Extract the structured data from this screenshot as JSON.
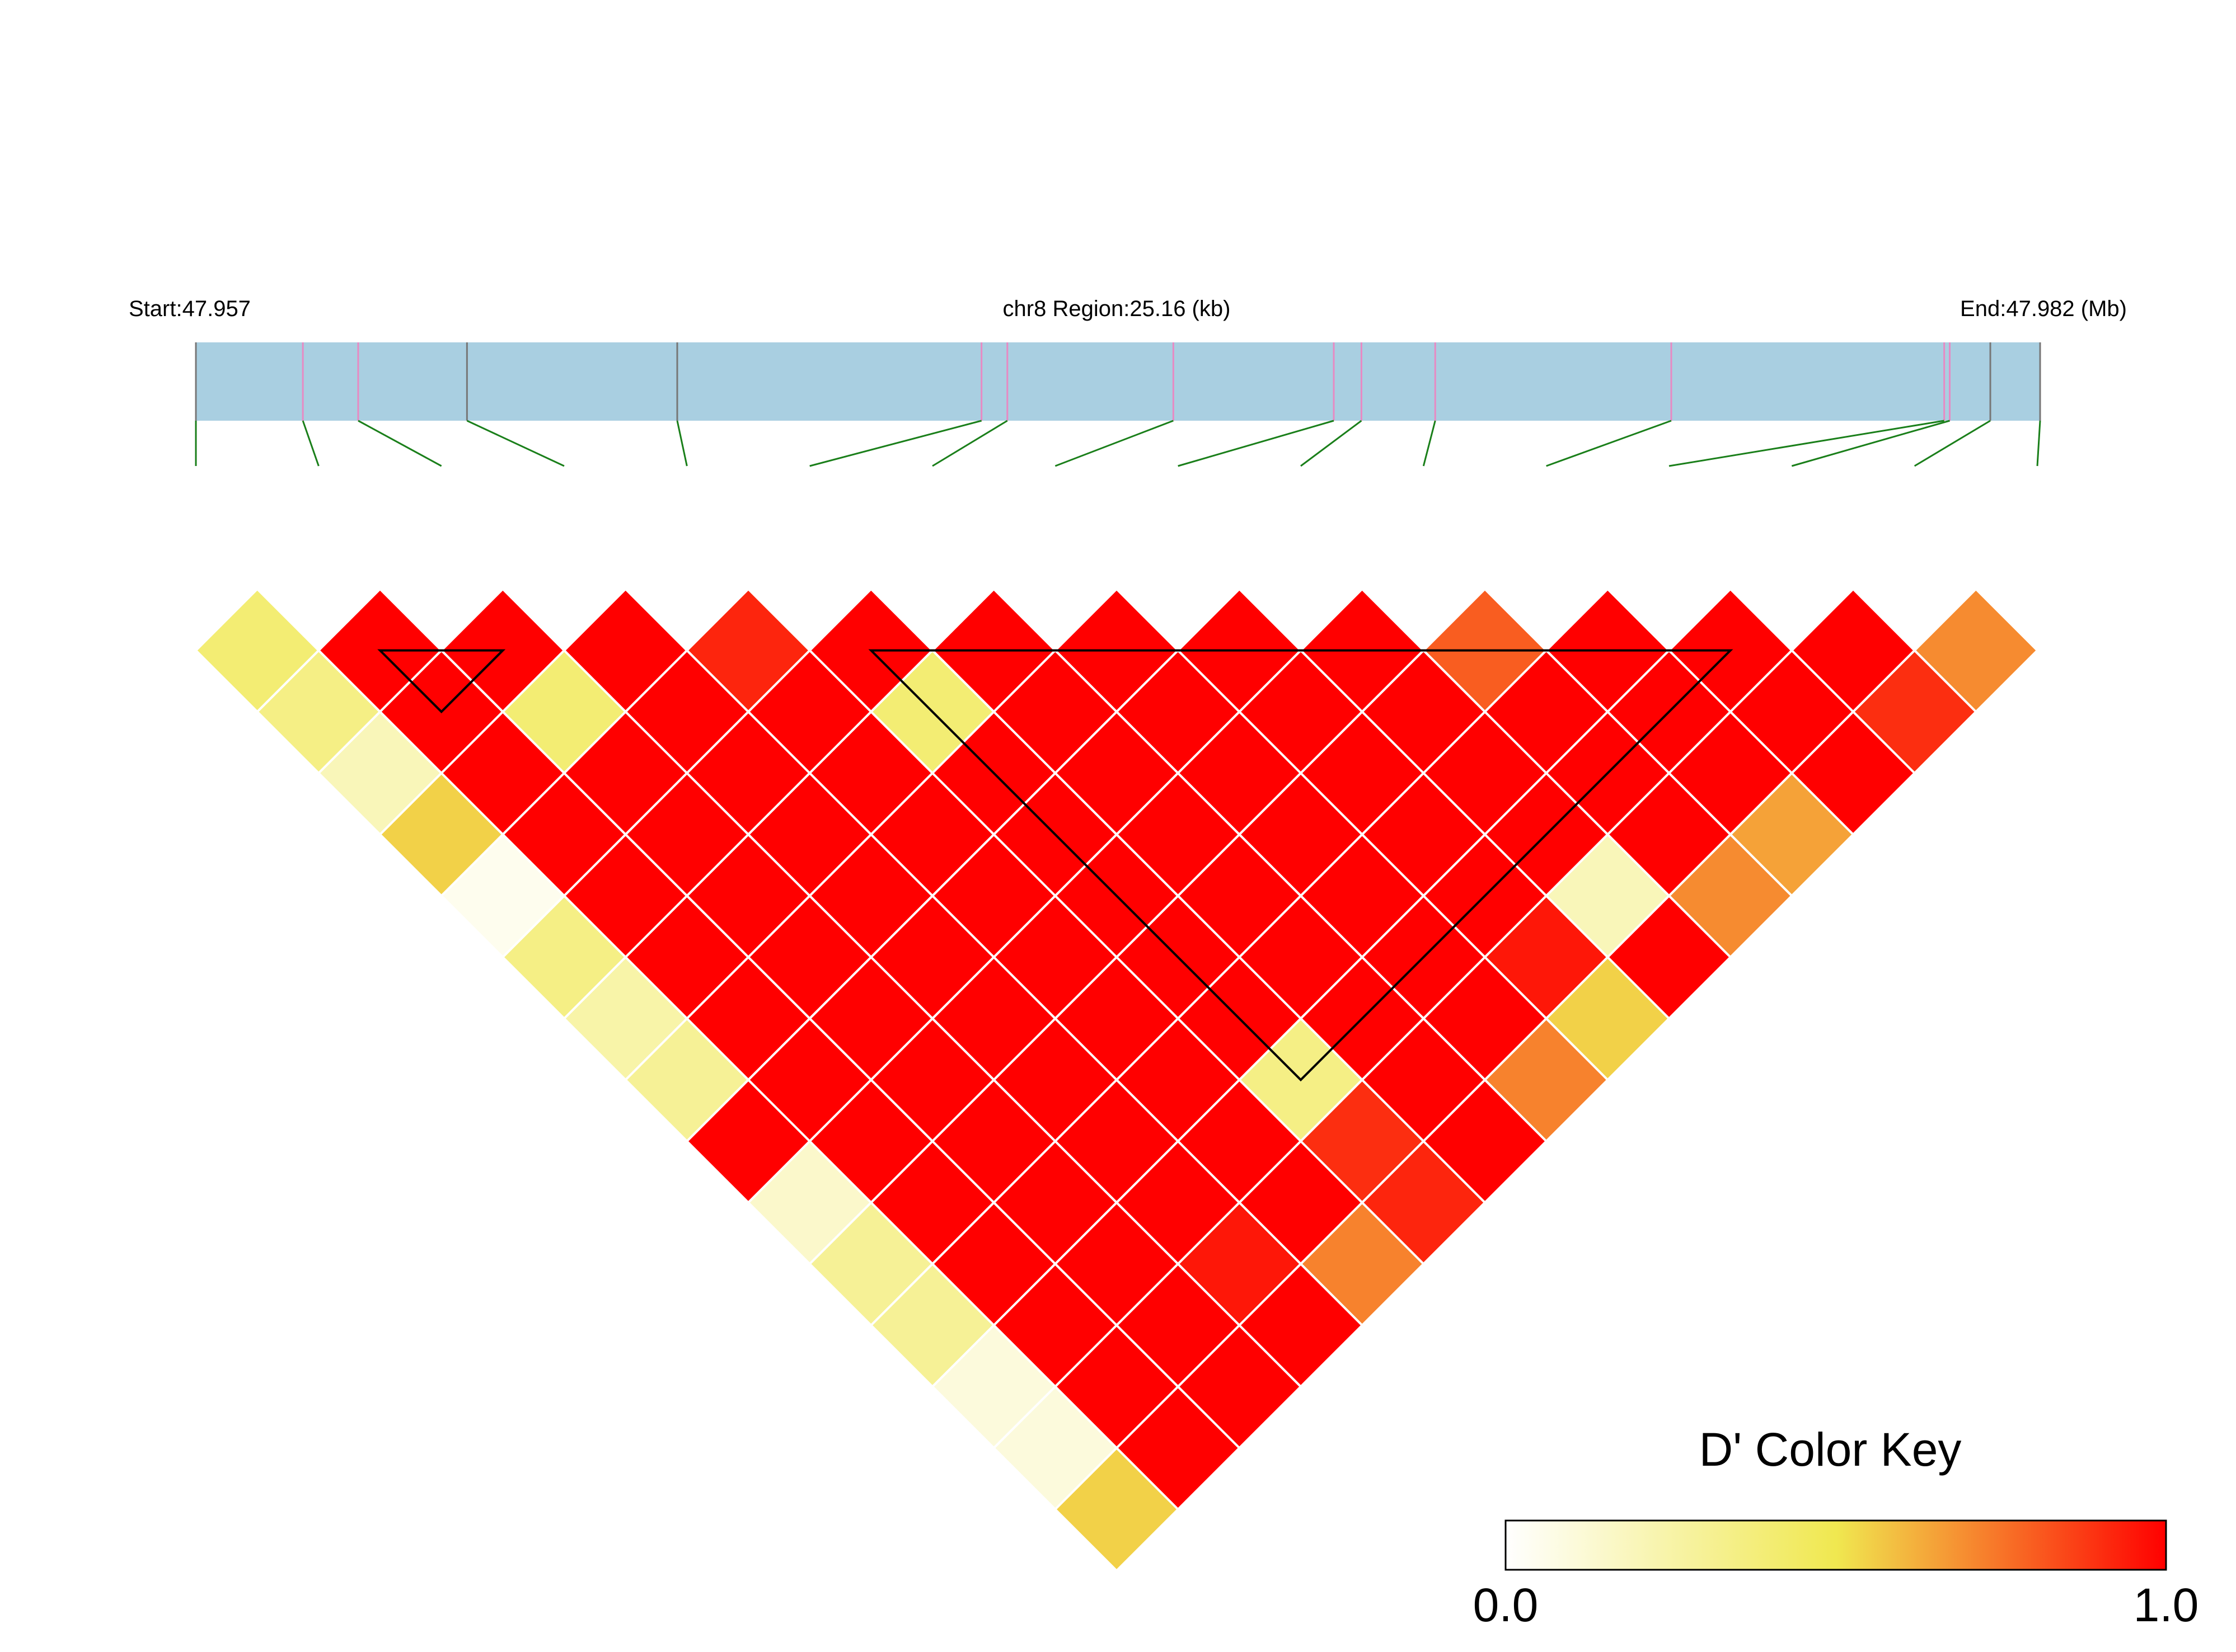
{
  "header": {
    "start_label": "Start:47.957",
    "region_label": "chr8 Region:25.16 (kb)",
    "end_label": "End:47.982 (Mb)"
  },
  "colors": {
    "track_fill": "#a9cfe1",
    "snp_line_gray": "#777777",
    "snp_line_pink": "#e78ac3",
    "connector_green": "#1a7f1a",
    "cell_border": "#ffffff",
    "block_outline": "#000000"
  },
  "key": {
    "title": "D' Color Key",
    "min_label": "0.0",
    "max_label": "1.0",
    "colors": [
      "#ffffff",
      "#f0e850",
      "#ff0000"
    ]
  },
  "chart_data": {
    "type": "heatmap",
    "metric": "D'",
    "region": {
      "chromosome": "chr8",
      "start_mb": 47.957,
      "end_mb": 47.982,
      "length_kb": 25.16
    },
    "snp_positions_frac": [
      0.0,
      0.058,
      0.088,
      0.147,
      0.261,
      0.426,
      0.44,
      0.53,
      0.617,
      0.632,
      0.672,
      0.8,
      0.948,
      0.951,
      0.973,
      1.0
    ],
    "snp_line_kinds": [
      "gray",
      "pink",
      "pink",
      "gray",
      "gray",
      "pink",
      "pink",
      "pink",
      "pink",
      "pink",
      "pink",
      "pink",
      "pink",
      "pink",
      "gray",
      "gray"
    ],
    "dprime_rows": [
      [
        0.4,
        1.0,
        1.0,
        1.0,
        0.92,
        1.0,
        1.0,
        1.0,
        1.0,
        1.0,
        0.8,
        1.0,
        1.0,
        1.0,
        0.7
      ],
      [
        0.35,
        1.0,
        0.4,
        1.0,
        1.0,
        0.4,
        1.0,
        1.0,
        1.0,
        1.0,
        1.0,
        1.0,
        1.0,
        0.9
      ],
      [
        0.2,
        1.0,
        1.0,
        1.0,
        1.0,
        1.0,
        1.0,
        1.0,
        1.0,
        1.0,
        1.0,
        1.0,
        1.0
      ],
      [
        0.55,
        1.0,
        1.0,
        1.0,
        1.0,
        1.0,
        1.0,
        1.0,
        1.0,
        1.0,
        1.0,
        0.65
      ],
      [
        0.05,
        1.0,
        1.0,
        1.0,
        1.0,
        1.0,
        1.0,
        1.0,
        1.0,
        0.2,
        0.7
      ],
      [
        0.35,
        1.0,
        1.0,
        1.0,
        1.0,
        1.0,
        1.0,
        1.0,
        0.95,
        1.0
      ],
      [
        0.25,
        1.0,
        1.0,
        1.0,
        1.0,
        1.0,
        1.0,
        1.0,
        0.55
      ],
      [
        0.3,
        1.0,
        1.0,
        1.0,
        1.0,
        0.35,
        1.0,
        0.72
      ],
      [
        1.0,
        1.0,
        1.0,
        1.0,
        1.0,
        0.9,
        1.0
      ],
      [
        0.15,
        1.0,
        1.0,
        1.0,
        1.0,
        0.92
      ],
      [
        0.3,
        1.0,
        1.0,
        0.95,
        0.72
      ],
      [
        0.3,
        1.0,
        1.0,
        1.0
      ],
      [
        0.1,
        1.0,
        1.0
      ],
      [
        0.1,
        1.0
      ],
      [
        0.55
      ]
    ],
    "haplotype_blocks": [
      {
        "first_snp": 2,
        "last_snp": 3
      },
      {
        "first_snp": 6,
        "last_snp": 13
      }
    ]
  }
}
